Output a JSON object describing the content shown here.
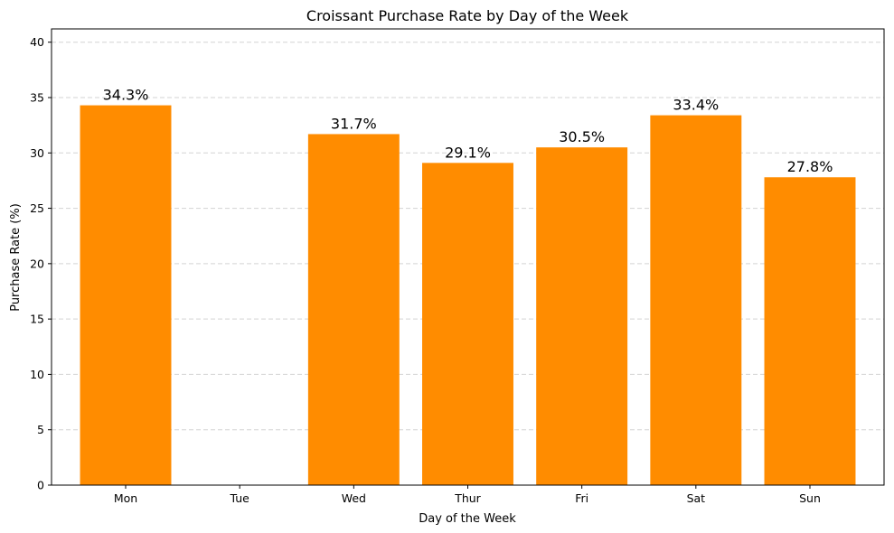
{
  "chart_data": {
    "type": "bar",
    "title": "Croissant Purchase Rate by Day of the Week",
    "xlabel": "Day of the Week",
    "ylabel": "Purchase Rate (%)",
    "categories": [
      "Mon",
      "Tue",
      "Wed",
      "Thur",
      "Fri",
      "Sat",
      "Sun"
    ],
    "values": [
      34.3,
      null,
      31.7,
      29.1,
      30.5,
      33.4,
      27.8
    ],
    "data_labels": [
      "34.3%",
      "",
      "31.7%",
      "29.1%",
      "30.5%",
      "33.4%",
      "27.8%"
    ],
    "ylim": [
      0,
      41.2
    ],
    "yticks": [
      0,
      5,
      10,
      15,
      20,
      25,
      30,
      35,
      40
    ],
    "grid": "y-dashed",
    "bar_color": "#ff8c00",
    "grid_color": "#d3d3d3"
  }
}
